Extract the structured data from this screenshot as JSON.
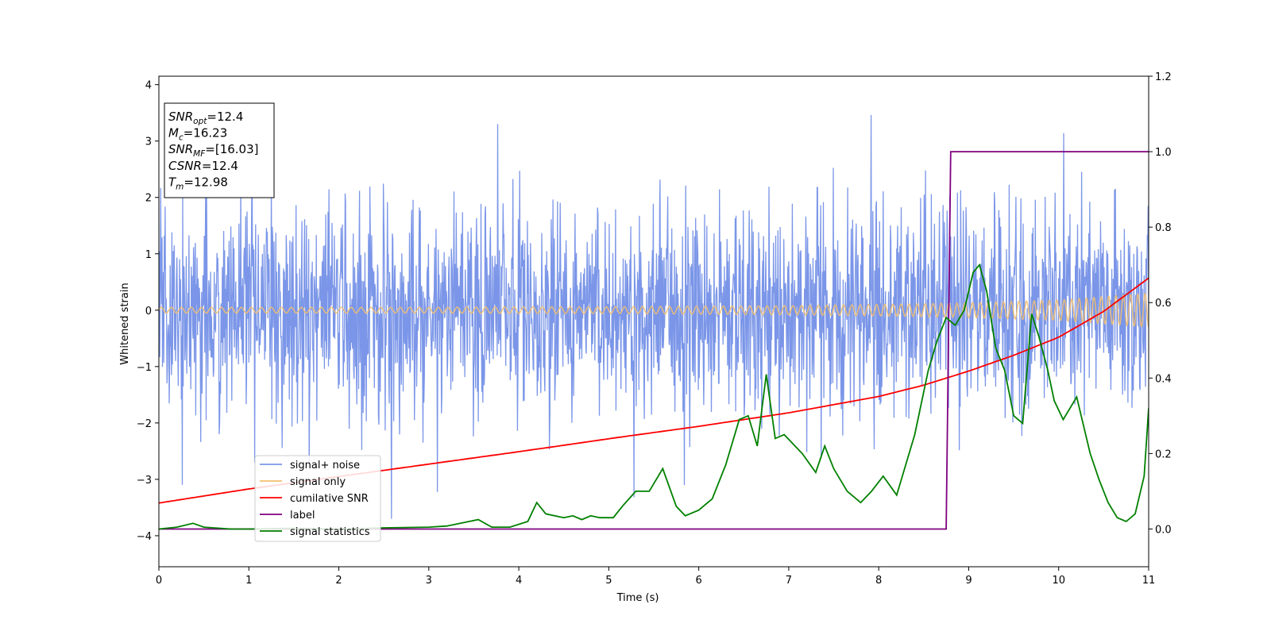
{
  "chart_data": {
    "type": "line",
    "title": "",
    "xlabel": "Time (s)",
    "ylabel": "Whitened strain",
    "y2label": "",
    "xlim": [
      0,
      11
    ],
    "ylim": [
      -4.55,
      4.15
    ],
    "y2lim": [
      -0.1,
      1.2
    ],
    "xticks": [
      "0",
      "1",
      "2",
      "3",
      "4",
      "5",
      "6",
      "7",
      "8",
      "9",
      "10",
      "11"
    ],
    "yticks": [
      "−4",
      "−3",
      "−2",
      "−1",
      "0",
      "1",
      "2",
      "3",
      "4"
    ],
    "y2ticks": [
      "0.0",
      "0.2",
      "0.4",
      "0.6",
      "0.8",
      "1.0",
      "1.2"
    ],
    "grid": false,
    "legend_position": "lower-left",
    "annotation": {
      "lines": [
        {
          "sym": "SNR",
          "sub": "opt",
          "val": "=12.4"
        },
        {
          "sym": "M",
          "sub": "c",
          "val": "=16.23"
        },
        {
          "sym": "SNR",
          "sub": "MF",
          "val": "=[16.03]"
        },
        {
          "sym": "CSNR",
          "sub": "",
          "val": "=12.4"
        },
        {
          "sym": "T",
          "sub": "m",
          "val": "=12.98"
        }
      ]
    },
    "series": [
      {
        "name": "signal+ noise",
        "color": "#7b96e8",
        "axis": "left",
        "noise_std": 0.95,
        "noise_range": [
          -3.7,
          3.75
        ],
        "samples": 2200
      },
      {
        "name": "signal only",
        "color": "#f2bf70",
        "axis": "left",
        "x": [
          0,
          1,
          2,
          3,
          4,
          5,
          6,
          7,
          8,
          9,
          10,
          11
        ],
        "envelope": [
          0.05,
          0.05,
          0.05,
          0.05,
          0.06,
          0.06,
          0.07,
          0.08,
          0.1,
          0.13,
          0.18,
          0.3
        ],
        "cycles_per_second": [
          9,
          9,
          9,
          9.5,
          9.5,
          10,
          10,
          10.5,
          11,
          11.5,
          12,
          12.5
        ]
      },
      {
        "name": "cumilative SNR",
        "color": "#ff0000",
        "axis": "left",
        "x": [
          0,
          1,
          2,
          3,
          4,
          5,
          6,
          7,
          8,
          8.5,
          9,
          9.5,
          10,
          10.5,
          11
        ],
        "y": [
          -3.42,
          -3.17,
          -2.95,
          -2.73,
          -2.51,
          -2.28,
          -2.06,
          -1.82,
          -1.53,
          -1.33,
          -1.08,
          -0.8,
          -0.48,
          -0.02,
          0.57
        ]
      },
      {
        "name": "label",
        "color": "#800080",
        "axis": "right",
        "x": [
          0,
          8.75,
          8.8,
          11
        ],
        "y": [
          0.0,
          0.0,
          1.0,
          1.0
        ]
      },
      {
        "name": "signal statistics",
        "color": "#008000",
        "axis": "right",
        "x": [
          0,
          0.2,
          0.38,
          0.5,
          0.8,
          1.0,
          1.5,
          2.0,
          2.5,
          3.0,
          3.2,
          3.35,
          3.55,
          3.7,
          3.9,
          4.1,
          4.2,
          4.3,
          4.5,
          4.6,
          4.7,
          4.8,
          4.9,
          5.05,
          5.15,
          5.3,
          5.45,
          5.6,
          5.75,
          5.85,
          6.0,
          6.15,
          6.3,
          6.45,
          6.55,
          6.65,
          6.75,
          6.85,
          6.95,
          7.15,
          7.3,
          7.4,
          7.5,
          7.65,
          7.8,
          7.92,
          8.05,
          8.2,
          8.4,
          8.55,
          8.65,
          8.75,
          8.85,
          8.95,
          9.05,
          9.12,
          9.2,
          9.3,
          9.4,
          9.5,
          9.6,
          9.7,
          9.78,
          9.88,
          9.95,
          10.05,
          10.2,
          10.35,
          10.45,
          10.55,
          10.65,
          10.75,
          10.85,
          10.95,
          11.0
        ],
        "y": [
          0.0,
          0.005,
          0.015,
          0.005,
          0.0,
          0.0,
          0.002,
          0.0,
          0.003,
          0.005,
          0.008,
          0.015,
          0.025,
          0.005,
          0.005,
          0.02,
          0.07,
          0.04,
          0.03,
          0.035,
          0.025,
          0.035,
          0.03,
          0.03,
          0.06,
          0.1,
          0.1,
          0.16,
          0.06,
          0.035,
          0.05,
          0.08,
          0.17,
          0.29,
          0.3,
          0.22,
          0.41,
          0.24,
          0.25,
          0.2,
          0.15,
          0.22,
          0.16,
          0.1,
          0.07,
          0.1,
          0.14,
          0.09,
          0.25,
          0.42,
          0.5,
          0.56,
          0.54,
          0.58,
          0.68,
          0.7,
          0.63,
          0.48,
          0.42,
          0.3,
          0.28,
          0.57,
          0.51,
          0.42,
          0.34,
          0.29,
          0.35,
          0.2,
          0.13,
          0.07,
          0.03,
          0.02,
          0.04,
          0.14,
          0.32
        ]
      }
    ]
  }
}
